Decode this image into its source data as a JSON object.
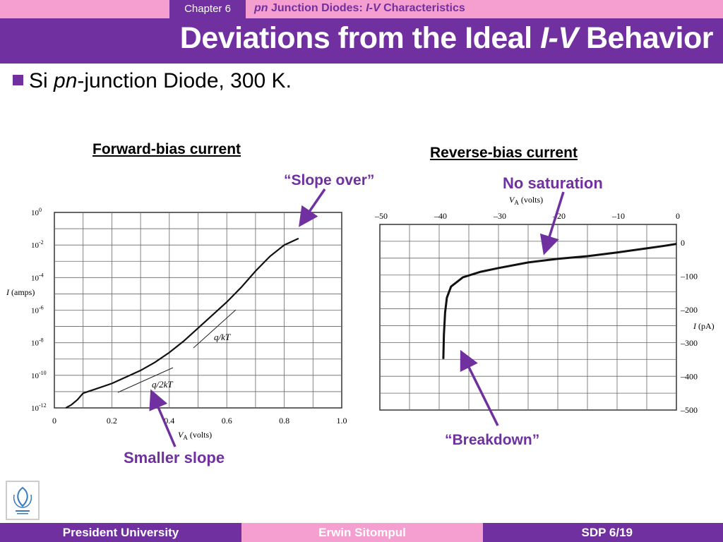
{
  "header": {
    "chapter": "Chapter 6",
    "topic_pn": "pn",
    "topic_mid": " Junction Diodes: ",
    "topic_iv": "I-V",
    "topic_end": " Characteristics",
    "title_a": "Deviations from the Ideal ",
    "title_iv": "I-V",
    "title_b": " Behavior"
  },
  "bullet": {
    "a": "Si ",
    "pn": "pn",
    "b": "-junction Diode, 300 K."
  },
  "forward": {
    "heading": "Forward-bias current",
    "annotations": {
      "slope_over": "“Slope over”",
      "smaller_slope": "Smaller slope"
    },
    "slope_labels": {
      "qkt": "q/kT",
      "q2kt": "q/2kT"
    },
    "ylabel": "I (amps)",
    "xlabel_pre": "V",
    "xlabel_sub": "A",
    "xlabel_post": " (volts)",
    "ytick_mantissa": [
      "10",
      "10",
      "10",
      "10",
      "10",
      "10",
      "10"
    ],
    "ytick_exp": [
      "0",
      "-2",
      "-4",
      "-6",
      "-8",
      "-10",
      "-12"
    ],
    "xticks": [
      "0",
      "0.2",
      "0.4",
      "0.6",
      "0.8",
      "1.0"
    ]
  },
  "reverse": {
    "heading": "Reverse-bias current",
    "annotations": {
      "no_saturation": "No saturation",
      "breakdown": "“Breakdown”"
    },
    "xlabel_pre": "V",
    "xlabel_sub": "A",
    "xlabel_post": " (volts)",
    "ylabel": "I (pA)",
    "xticks": [
      "–50",
      "–40",
      "–30",
      "–20",
      "–10",
      "0"
    ],
    "yticks": [
      "0",
      "–100",
      "–200",
      "–300",
      "–400",
      "–500"
    ]
  },
  "footer": {
    "left": "President University",
    "center": "Erwin Sitompul",
    "right": "SDP 6/19"
  },
  "colors": {
    "purple": "#7030a0",
    "pink": "#f59fd0"
  },
  "chart_data": [
    {
      "type": "line",
      "title": "Forward-bias current",
      "xlabel": "VA (volts)",
      "ylabel": "I (amps)",
      "xlim": [
        0,
        1.0
      ],
      "ylim_log10": [
        -12,
        0
      ],
      "log_y": true,
      "grid": true,
      "series": [
        {
          "x": [
            0.04,
            0.06,
            0.08,
            0.1,
            0.15,
            0.2,
            0.25,
            0.3,
            0.35,
            0.4,
            0.45,
            0.5,
            0.55,
            0.6,
            0.65,
            0.7,
            0.75,
            0.8,
            0.85
          ],
          "log10_y": [
            -12.0,
            -11.8,
            -11.5,
            -11.1,
            -10.8,
            -10.5,
            -10.1,
            -9.7,
            -9.2,
            -8.6,
            -7.9,
            -7.1,
            -6.3,
            -5.5,
            -4.6,
            -3.6,
            -2.7,
            -2.0,
            -1.6
          ]
        }
      ],
      "annotations": [
        "q/kT",
        "q/2kT",
        "“Slope over”",
        "Smaller slope"
      ]
    },
    {
      "type": "line",
      "title": "Reverse-bias current",
      "xlabel": "VA (volts)",
      "ylabel": "I (pA)",
      "xlim": [
        -50,
        0
      ],
      "ylim": [
        -500,
        0
      ],
      "grid": true,
      "series": [
        {
          "x": [
            -39.3,
            -39.2,
            -39.0,
            -38.7,
            -38.0,
            -36.0,
            -33.0,
            -30.0,
            -25.0,
            -20.0,
            -15.0,
            -10.0,
            -5.0,
            -2.0,
            0
          ],
          "y": [
            -315,
            -250,
            -190,
            -150,
            -120,
            -95,
            -80,
            -70,
            -55,
            -45,
            -38,
            -28,
            -17,
            -10,
            -5
          ]
        }
      ],
      "annotations": [
        "No saturation",
        "“Breakdown”"
      ]
    }
  ]
}
